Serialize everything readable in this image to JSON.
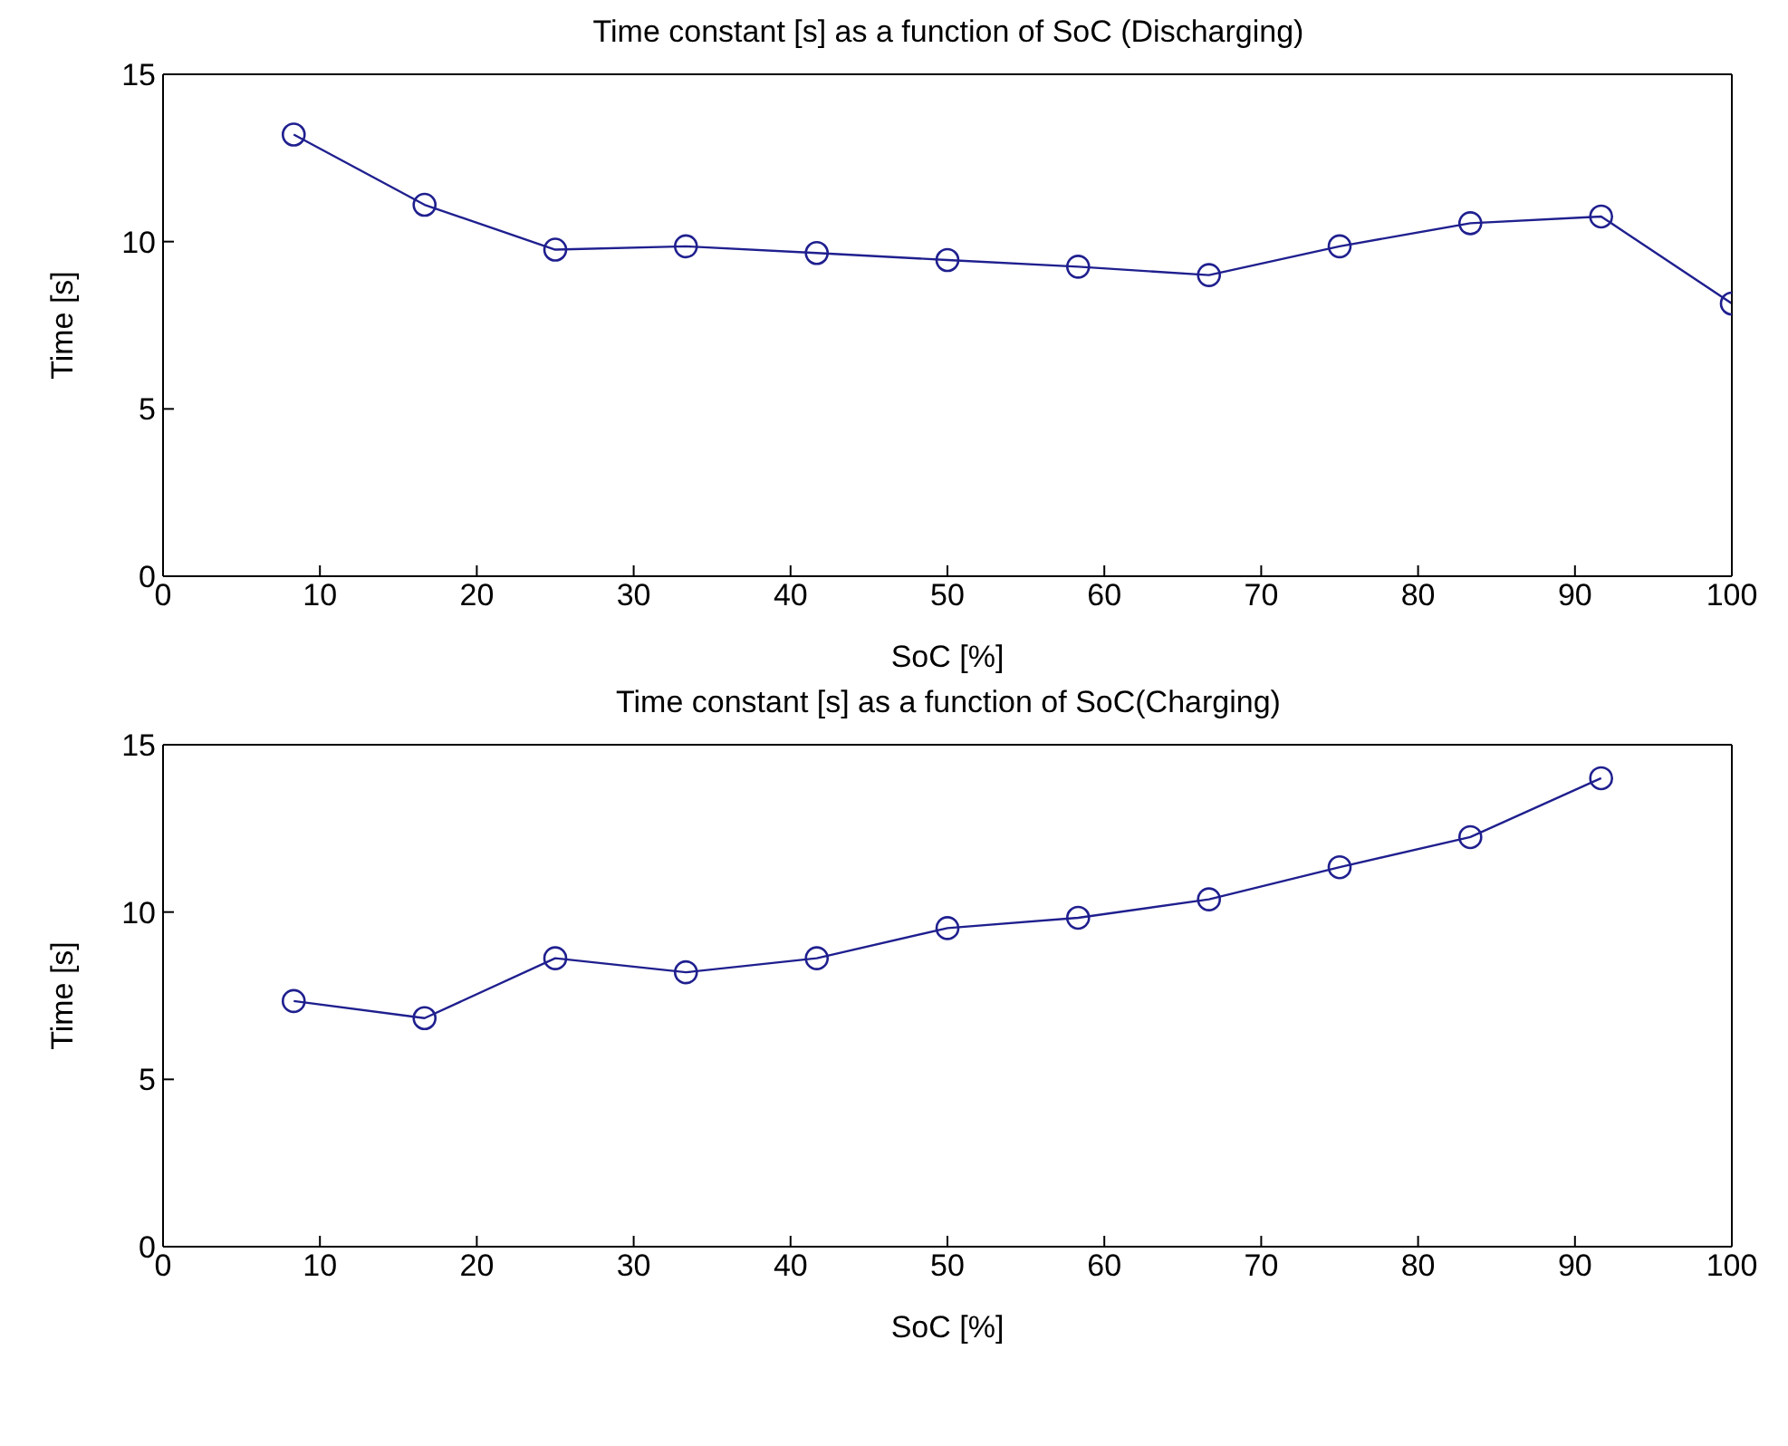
{
  "chart_data": [
    {
      "type": "line",
      "title": "Time constant [s] as a function of SoC (Discharging)",
      "xlabel": "SoC [%]",
      "ylabel": "Time [s]",
      "x": [
        8.33,
        16.67,
        25,
        33.33,
        41.67,
        50,
        58.33,
        66.67,
        75,
        83.33,
        91.67,
        100
      ],
      "series": [
        {
          "color": "#1f1f8f",
          "values": [
            13.2,
            11.1,
            9.76,
            9.86,
            9.66,
            9.45,
            9.25,
            9.0,
            9.86,
            10.55,
            10.75,
            8.15
          ]
        }
      ],
      "xlim": [
        0,
        100
      ],
      "xticks": [
        0,
        10,
        20,
        30,
        40,
        50,
        60,
        70,
        80,
        90,
        100
      ],
      "ylim": [
        0,
        15
      ],
      "yticks": [
        0,
        5,
        10,
        15
      ],
      "marker": "circle",
      "grid": false
    },
    {
      "type": "line",
      "title": "Time constant [s] as a function of SoC(Charging)",
      "xlabel": "SoC [%]",
      "ylabel": "Time [s]",
      "x": [
        8.33,
        16.67,
        25,
        33.33,
        41.67,
        50,
        58.33,
        66.67,
        75,
        83.33,
        91.67
      ],
      "series": [
        {
          "color": "#1f1f8f",
          "values": [
            7.34,
            6.83,
            8.62,
            8.2,
            8.62,
            9.52,
            9.83,
            10.38,
            11.34,
            12.24,
            14.0
          ]
        }
      ],
      "xlim": [
        0,
        100
      ],
      "xticks": [
        0,
        10,
        20,
        30,
        40,
        50,
        60,
        70,
        80,
        90,
        100
      ],
      "ylim": [
        0,
        15
      ],
      "yticks": [
        0,
        5,
        10,
        15
      ],
      "marker": "circle",
      "grid": false
    }
  ]
}
